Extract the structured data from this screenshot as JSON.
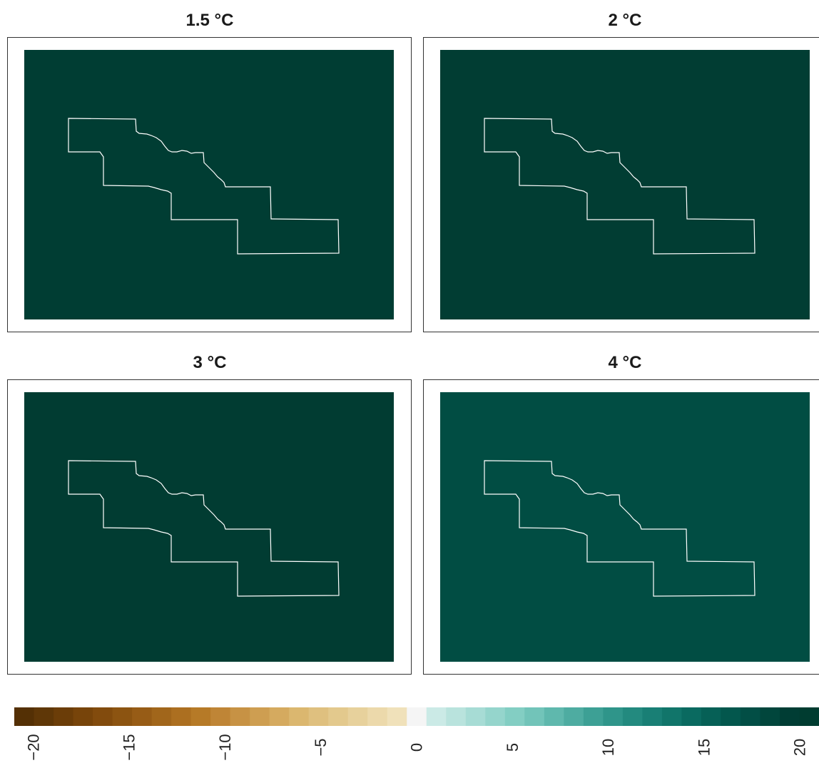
{
  "chart_data": [
    {
      "type": "heatmap",
      "title": "1.5 °C",
      "fill_value": 19,
      "fill_color": "#003d33",
      "region_outline_color": "#ffffff"
    },
    {
      "type": "heatmap",
      "title": "2 °C",
      "fill_value": 19,
      "fill_color": "#013d33",
      "region_outline_color": "#ffffff"
    },
    {
      "type": "heatmap",
      "title": "3 °C",
      "fill_value": 19,
      "fill_color": "#013c32",
      "region_outline_color": "#ffffff"
    },
    {
      "type": "heatmap",
      "title": "4 °C",
      "fill_value": 17,
      "fill_color": "#014d43",
      "region_outline_color": "#ffffff"
    }
  ],
  "colorbar": {
    "ticks": [
      {
        "value": -20,
        "label": "−20"
      },
      {
        "value": -15,
        "label": "−15"
      },
      {
        "value": -10,
        "label": "−10"
      },
      {
        "value": -5,
        "label": "−5"
      },
      {
        "value": 0,
        "label": "0"
      },
      {
        "value": 5,
        "label": "5"
      },
      {
        "value": 10,
        "label": "10"
      },
      {
        "value": 15,
        "label": "15"
      },
      {
        "value": 20,
        "label": "20"
      }
    ],
    "range": [
      -21,
      21
    ],
    "colors": [
      "#543005",
      "#5f3707",
      "#6b3d08",
      "#77440a",
      "#824b0d",
      "#8c5411",
      "#975c16",
      "#a1661b",
      "#ac6f20",
      "#b67a27",
      "#bf8536",
      "#c79244",
      "#ce9e51",
      "#d5aa5f",
      "#dbb76f",
      "#dfc07f",
      "#e3c98d",
      "#e7d19c",
      "#ecd9ab",
      "#f0e1ba",
      "#f5f5f5",
      "#cbeae6",
      "#b9e3dd",
      "#a7dcd5",
      "#95d5cc",
      "#83cec3",
      "#72c4b9",
      "#5fb8ad",
      "#4eaca1",
      "#3da095",
      "#2f958a",
      "#238a7f",
      "#197f75",
      "#11756a",
      "#0a6a60",
      "#066056",
      "#03574d",
      "#024e45",
      "#01463c",
      "#003d34",
      "#003c30"
    ]
  }
}
